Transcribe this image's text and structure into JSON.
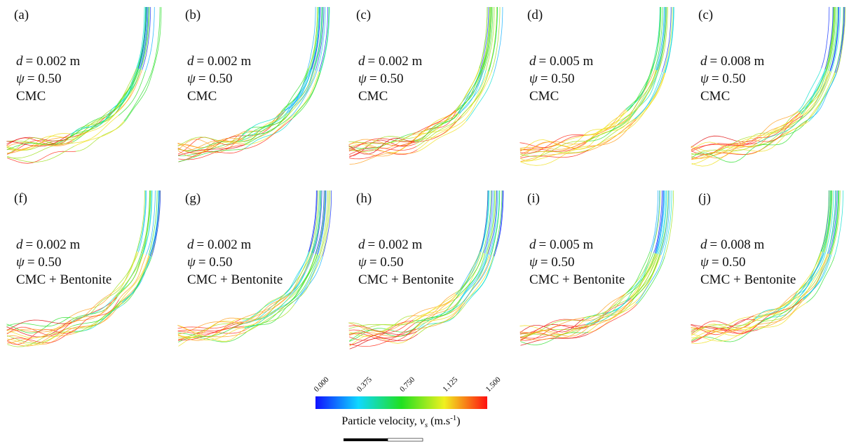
{
  "panels": [
    {
      "label": "(a)",
      "d_symbol": "d",
      "d_text": "= 0.002 m",
      "psi_symbol": "ψ",
      "psi_text": "= 0.50",
      "fluid": "CMC"
    },
    {
      "label": "(b)",
      "d_symbol": "d",
      "d_text": "= 0.002 m",
      "psi_symbol": "ψ",
      "psi_text": "= 0.50",
      "fluid": "CMC"
    },
    {
      "label": "(c)",
      "d_symbol": "d",
      "d_text": "= 0.002 m",
      "psi_symbol": "ψ",
      "psi_text": "= 0.50",
      "fluid": "CMC"
    },
    {
      "label": "(d)",
      "d_symbol": "d",
      "d_text": "= 0.005 m",
      "psi_symbol": "ψ",
      "psi_text": "= 0.50",
      "fluid": "CMC"
    },
    {
      "label": "(c)",
      "d_symbol": "d",
      "d_text": "= 0.008 m",
      "psi_symbol": "ψ",
      "psi_text": "= 0.50",
      "fluid": "CMC"
    },
    {
      "label": "(f)",
      "d_symbol": "d",
      "d_text": "= 0.002 m",
      "psi_symbol": "ψ",
      "psi_text": "= 0.50",
      "fluid": "CMC + Bentonite"
    },
    {
      "label": "(g)",
      "d_symbol": "d",
      "d_text": "= 0.002 m",
      "psi_symbol": "ψ",
      "psi_text": "= 0.50",
      "fluid": "CMC + Bentonite"
    },
    {
      "label": "(h)",
      "d_symbol": "d",
      "d_text": "= 0.002 m",
      "psi_symbol": "ψ",
      "psi_text": "= 0.50",
      "fluid": "CMC + Bentonite"
    },
    {
      "label": "(i)",
      "d_symbol": "d",
      "d_text": "= 0.005 m",
      "psi_symbol": "ψ",
      "psi_text": "= 0.50",
      "fluid": "CMC + Bentonite"
    },
    {
      "label": "(j)",
      "d_symbol": "d",
      "d_text": "= 0.008 m",
      "psi_symbol": "ψ",
      "psi_text": "= 0.50",
      "fluid": "CMC + Bentonite"
    }
  ],
  "colorbar": {
    "ticks": [
      "0.000",
      "0.375",
      "0.750",
      "1.125",
      "1.500"
    ],
    "title_prefix": "Particle velocity, ",
    "symbol": "v",
    "subscript": "s",
    "unit": " (m.s",
    "unit_exponent": "-1",
    "unit_close": ")"
  }
}
